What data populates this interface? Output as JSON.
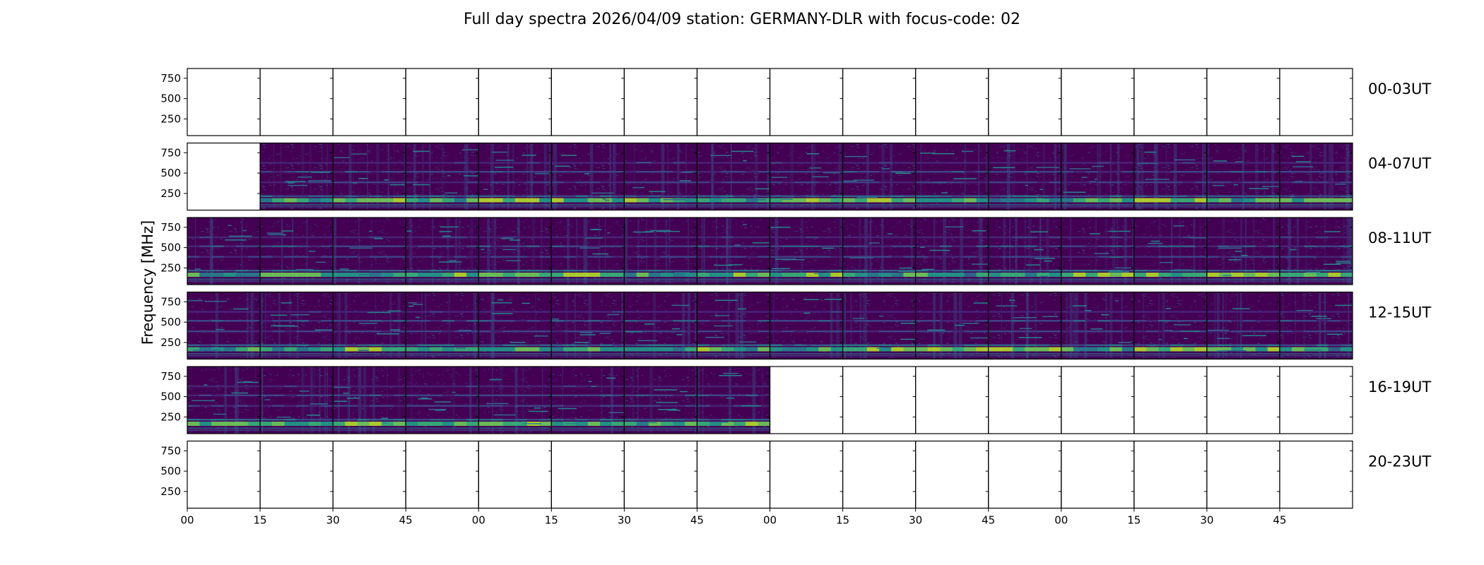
{
  "chart_data": {
    "type": "heatmap",
    "title": "Full day spectra 2026/04/09 station: GERMANY-DLR with focus-code: 02",
    "ylabel": "Frequency [MHz]",
    "xlabel": "",
    "ylim": [
      45,
      870
    ],
    "yticks": [
      250,
      500,
      750
    ],
    "xtick_labels": [
      "00",
      "15",
      "30",
      "45",
      "00",
      "15",
      "30",
      "45",
      "00",
      "15",
      "30",
      "45",
      "00",
      "15",
      "30",
      "45"
    ],
    "panels_per_row": 16,
    "panel_minutes": 15,
    "colormap": [
      "#440154",
      "#482878",
      "#3e4a89",
      "#31688e",
      "#26828e",
      "#1f9e89",
      "#35b779",
      "#6ece58",
      "#b5de2b"
    ],
    "rows": [
      {
        "label": "00-03UT",
        "data_present": [
          0,
          0,
          0,
          0,
          0,
          0,
          0,
          0,
          0,
          0,
          0,
          0,
          0,
          0,
          0,
          0
        ]
      },
      {
        "label": "04-07UT",
        "data_present": [
          0,
          1,
          1,
          1,
          1,
          1,
          1,
          1,
          1,
          1,
          1,
          1,
          1,
          1,
          1,
          1
        ]
      },
      {
        "label": "08-11UT",
        "data_present": [
          1,
          1,
          1,
          1,
          1,
          1,
          1,
          1,
          1,
          1,
          1,
          1,
          1,
          1,
          1,
          1
        ]
      },
      {
        "label": "12-15UT",
        "data_present": [
          1,
          1,
          1,
          1,
          1,
          1,
          1,
          1,
          1,
          1,
          1,
          1,
          1,
          1,
          1,
          1
        ]
      },
      {
        "label": "16-19UT",
        "data_present": [
          1,
          1,
          1,
          1,
          1,
          1,
          1,
          1,
          0,
          0,
          0,
          0,
          0,
          0,
          0,
          0
        ]
      },
      {
        "label": "20-23UT",
        "data_present": [
          0,
          0,
          0,
          0,
          0,
          0,
          0,
          0,
          0,
          0,
          0,
          0,
          0,
          0,
          0,
          0
        ]
      }
    ],
    "bright_bands_mhz": [
      {
        "center": 175,
        "intensity": 0.85
      },
      {
        "center": 210,
        "intensity": 0.5
      },
      {
        "center": 380,
        "intensity": 0.3
      },
      {
        "center": 510,
        "intensity": 0.35
      },
      {
        "center": 620,
        "intensity": 0.2
      }
    ]
  }
}
